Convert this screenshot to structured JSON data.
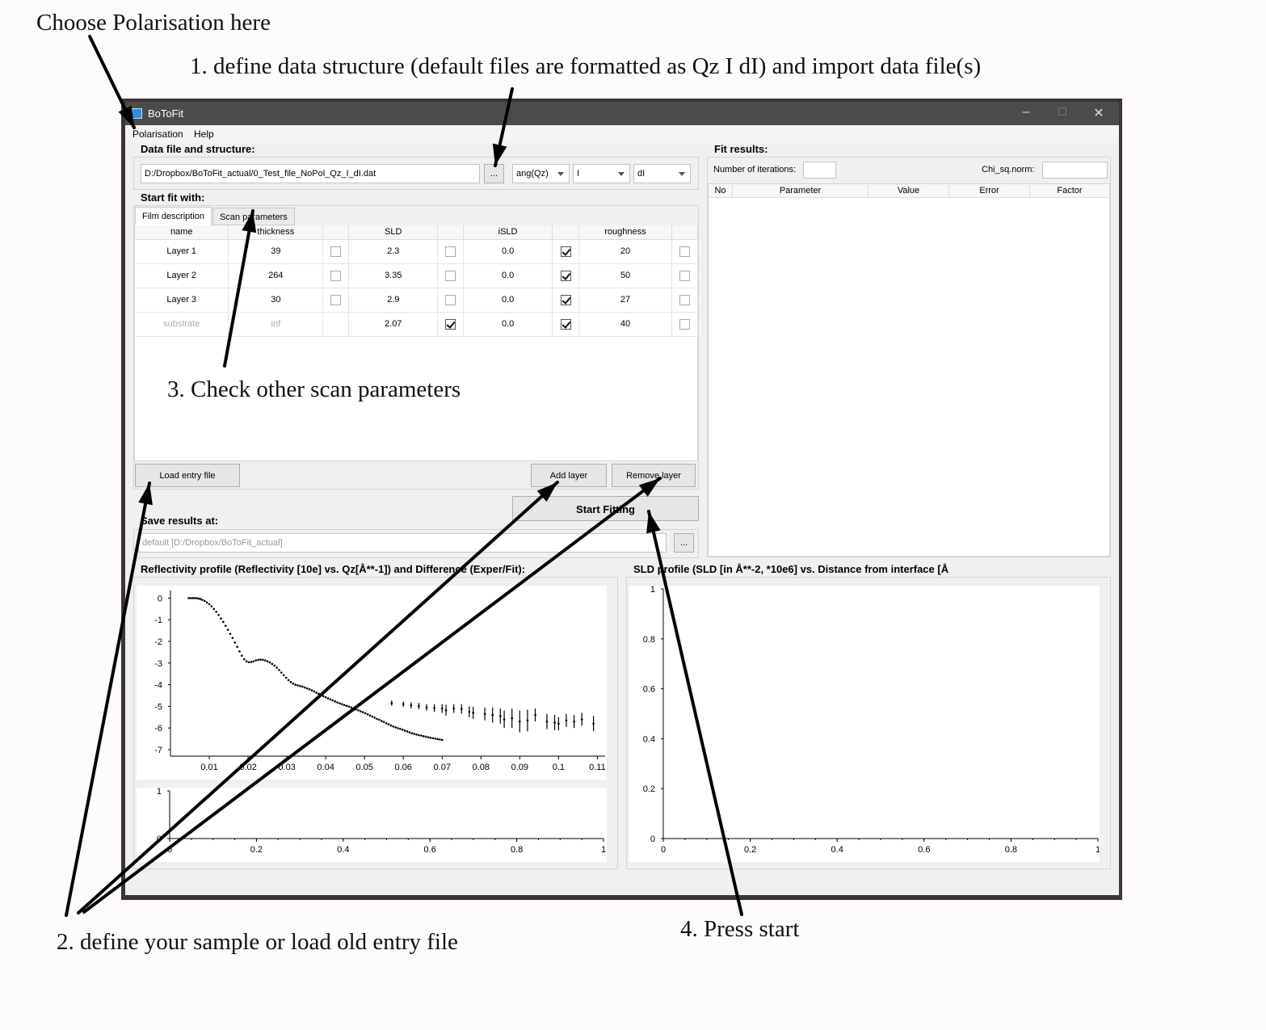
{
  "annotations": {
    "polarisation": "Choose Polarisation here",
    "step1": "1. define data structure (default files are formatted as Qz I dI) and import data file(s)",
    "step2": "2. define your sample or load old entry file",
    "step3": "3. Check other scan parameters",
    "step4": "4. Press start"
  },
  "window": {
    "title": "BoToFit",
    "controls": {
      "minimize": "–",
      "maximize": "□",
      "close": "✕"
    }
  },
  "menu": {
    "polarisation": "Polarisation",
    "help": "Help"
  },
  "data_section": {
    "label": "Data file and structure:",
    "file_path": "D:/Dropbox/BoToFit_actual/0_Test_file_NoPol_Qz_I_dI.dat",
    "browse": "...",
    "col1": "ang(Qz)",
    "col2": "I",
    "col3": "dI"
  },
  "start_fit": {
    "label": "Start fit with:",
    "tabs": [
      "Film description",
      "Scan parameters"
    ],
    "columns": [
      "name",
      "thickness",
      "",
      "SLD",
      "",
      "iSLD",
      "",
      "roughness",
      ""
    ],
    "rows": [
      {
        "name": "Layer 1",
        "thickness": "39",
        "thick_fixed": false,
        "sld": "2.3",
        "sld_fixed": false,
        "isld": "0.0",
        "isld_fixed": true,
        "roughness": "20",
        "rough_fixed": false
      },
      {
        "name": "Layer 2",
        "thickness": "264",
        "thick_fixed": false,
        "sld": "3.35",
        "sld_fixed": false,
        "isld": "0.0",
        "isld_fixed": true,
        "roughness": "50",
        "rough_fixed": false
      },
      {
        "name": "Layer 3",
        "thickness": "30",
        "thick_fixed": false,
        "sld": "2.9",
        "sld_fixed": false,
        "isld": "0.0",
        "isld_fixed": true,
        "roughness": "27",
        "rough_fixed": false
      },
      {
        "name": "substrate",
        "thickness": "inf",
        "thick_fixed": null,
        "sld": "2.07",
        "sld_fixed": true,
        "isld": "0.0",
        "isld_fixed": true,
        "roughness": "40",
        "rough_fixed": false
      }
    ],
    "load_entry": "Load entry file",
    "add_layer": "Add layer",
    "remove_layer": "Remove layer",
    "start": "Start Fitting"
  },
  "save": {
    "label": "Save results at:",
    "placeholder": "default [D:/Dropbox/BoToFit_actual]",
    "browse": "..."
  },
  "fit_results": {
    "label": "Fit results:",
    "iterations_label": "Number of iterations:",
    "chi_label": "Chi_sq.norm:",
    "columns": [
      "No",
      "Parameter",
      "Value",
      "Error",
      "Factor"
    ]
  },
  "plots": {
    "reflectivity_title": "Reflectivity profile (Reflectivity [10e] vs. Qz[Å**-1]) and Difference (Exper/Fit):",
    "sld_title": "SLD profile (SLD [in Å**-2, *10e6] vs. Distance from interface [Å"
  },
  "chart_data": [
    {
      "type": "scatter",
      "name": "reflectivity",
      "xlim": [
        0.0,
        0.112
      ],
      "ylim": [
        -7.3,
        0.35
      ],
      "x_ticks": [
        "0.01",
        "0.02",
        "0.03",
        "0.04",
        "0.05",
        "0.06",
        "0.07",
        "0.08",
        "0.09",
        "0.1",
        "0.11"
      ],
      "y_ticks": [
        "0",
        "-1",
        "-2",
        "-3",
        "-4",
        "-5",
        "-6",
        "-7"
      ],
      "points": [
        [
          0.0047,
          0.0
        ],
        [
          0.0052,
          0.0
        ],
        [
          0.0057,
          0.0
        ],
        [
          0.0062,
          0.0
        ],
        [
          0.0067,
          0.0
        ],
        [
          0.0072,
          -0.02
        ],
        [
          0.0077,
          -0.04
        ],
        [
          0.0082,
          -0.08
        ],
        [
          0.0088,
          -0.13
        ],
        [
          0.0094,
          -0.2
        ],
        [
          0.01,
          -0.28
        ],
        [
          0.0106,
          -0.38
        ],
        [
          0.0112,
          -0.5
        ],
        [
          0.0118,
          -0.63
        ],
        [
          0.0124,
          -0.78
        ],
        [
          0.013,
          -0.94
        ],
        [
          0.0136,
          -1.1
        ],
        [
          0.0142,
          -1.28
        ],
        [
          0.0148,
          -1.46
        ],
        [
          0.0154,
          -1.65
        ],
        [
          0.016,
          -1.84
        ],
        [
          0.0166,
          -2.05
        ],
        [
          0.0172,
          -2.25
        ],
        [
          0.0178,
          -2.46
        ],
        [
          0.0184,
          -2.66
        ],
        [
          0.019,
          -2.82
        ],
        [
          0.0196,
          -2.92
        ],
        [
          0.0202,
          -2.96
        ],
        [
          0.0208,
          -2.95
        ],
        [
          0.0214,
          -2.92
        ],
        [
          0.022,
          -2.88
        ],
        [
          0.0226,
          -2.85
        ],
        [
          0.0232,
          -2.84
        ],
        [
          0.0238,
          -2.85
        ],
        [
          0.0244,
          -2.88
        ],
        [
          0.025,
          -2.92
        ],
        [
          0.0256,
          -2.97
        ],
        [
          0.0262,
          -3.04
        ],
        [
          0.0268,
          -3.12
        ],
        [
          0.0274,
          -3.21
        ],
        [
          0.028,
          -3.32
        ],
        [
          0.0286,
          -3.44
        ],
        [
          0.0292,
          -3.56
        ],
        [
          0.0298,
          -3.68
        ],
        [
          0.0304,
          -3.79
        ],
        [
          0.031,
          -3.88
        ],
        [
          0.0316,
          -3.95
        ],
        [
          0.0322,
          -4.0
        ],
        [
          0.0328,
          -4.03
        ],
        [
          0.0334,
          -4.06
        ],
        [
          0.034,
          -4.09
        ],
        [
          0.0346,
          -4.13
        ],
        [
          0.0352,
          -4.17
        ],
        [
          0.0358,
          -4.21
        ],
        [
          0.0364,
          -4.26
        ],
        [
          0.037,
          -4.31
        ],
        [
          0.0376,
          -4.37
        ],
        [
          0.0382,
          -4.42
        ],
        [
          0.0388,
          -4.48
        ],
        [
          0.0394,
          -4.53
        ],
        [
          0.04,
          -4.58
        ],
        [
          0.0406,
          -4.63
        ],
        [
          0.0412,
          -4.68
        ],
        [
          0.0418,
          -4.72
        ],
        [
          0.0424,
          -4.77
        ],
        [
          0.043,
          -4.82
        ],
        [
          0.0436,
          -4.86
        ],
        [
          0.0442,
          -4.9
        ],
        [
          0.0448,
          -4.94
        ],
        [
          0.0454,
          -4.98
        ],
        [
          0.046,
          -5.01
        ],
        [
          0.0466,
          -5.05
        ],
        [
          0.0472,
          -5.1
        ],
        [
          0.0478,
          -5.14
        ],
        [
          0.0484,
          -5.18
        ],
        [
          0.049,
          -5.23
        ],
        [
          0.0496,
          -5.27
        ],
        [
          0.0502,
          -5.32
        ],
        [
          0.0508,
          -5.37
        ],
        [
          0.0514,
          -5.42
        ],
        [
          0.052,
          -5.47
        ],
        [
          0.0526,
          -5.52
        ],
        [
          0.0532,
          -5.58
        ],
        [
          0.0538,
          -5.62
        ],
        [
          0.0544,
          -5.68
        ],
        [
          0.055,
          -5.72
        ],
        [
          0.0556,
          -5.78
        ],
        [
          0.0562,
          -5.83
        ],
        [
          0.0568,
          -5.88
        ],
        [
          0.0574,
          -5.93
        ],
        [
          0.058,
          -5.97
        ],
        [
          0.0586,
          -6.01
        ],
        [
          0.0592,
          -6.04
        ],
        [
          0.0598,
          -6.08
        ],
        [
          0.0604,
          -6.12
        ],
        [
          0.061,
          -6.16
        ],
        [
          0.0616,
          -6.2
        ],
        [
          0.0622,
          -6.24
        ],
        [
          0.0628,
          -6.27
        ],
        [
          0.0634,
          -6.3
        ],
        [
          0.064,
          -6.33
        ],
        [
          0.0646,
          -6.35
        ],
        [
          0.0652,
          -6.38
        ],
        [
          0.0658,
          -6.4
        ],
        [
          0.0664,
          -6.43
        ],
        [
          0.067,
          -6.45
        ],
        [
          0.0676,
          -6.47
        ],
        [
          0.0682,
          -6.49
        ],
        [
          0.0688,
          -6.51
        ],
        [
          0.0694,
          -6.53
        ],
        [
          0.07,
          -6.55
        ]
      ],
      "error_points": [
        [
          0.057,
          -4.85,
          0.12
        ],
        [
          0.06,
          -4.9,
          0.12
        ],
        [
          0.062,
          -4.95,
          0.14
        ],
        [
          0.064,
          -4.99,
          0.15
        ],
        [
          0.066,
          -5.05,
          0.15
        ],
        [
          0.068,
          -5.08,
          0.18
        ],
        [
          0.07,
          -5.1,
          0.2
        ],
        [
          0.071,
          -5.18,
          0.25
        ],
        [
          0.073,
          -5.1,
          0.2
        ],
        [
          0.075,
          -5.12,
          0.22
        ],
        [
          0.077,
          -5.25,
          0.25
        ],
        [
          0.078,
          -5.3,
          0.28
        ],
        [
          0.081,
          -5.35,
          0.3
        ],
        [
          0.083,
          -5.4,
          0.35
        ],
        [
          0.085,
          -5.45,
          0.35
        ],
        [
          0.086,
          -5.6,
          0.4
        ],
        [
          0.088,
          -5.55,
          0.45
        ],
        [
          0.09,
          -5.7,
          0.5
        ],
        [
          0.092,
          -5.65,
          0.5
        ],
        [
          0.094,
          -5.4,
          0.3
        ],
        [
          0.097,
          -5.7,
          0.35
        ],
        [
          0.099,
          -5.75,
          0.35
        ],
        [
          0.1,
          -5.8,
          0.3
        ],
        [
          0.102,
          -5.65,
          0.3
        ],
        [
          0.104,
          -5.7,
          0.3
        ],
        [
          0.106,
          -5.6,
          0.3
        ],
        [
          0.109,
          -5.8,
          0.35
        ]
      ]
    },
    {
      "type": "line",
      "name": "difference",
      "xlim": [
        0,
        1
      ],
      "ylim": [
        0,
        1
      ],
      "x_ticks": [
        "0",
        "0.2",
        "0.4",
        "0.6",
        "0.8",
        "1"
      ],
      "y_ticks": [
        "0",
        "1"
      ]
    },
    {
      "type": "line",
      "name": "sld",
      "xlim": [
        0,
        1
      ],
      "ylim": [
        0,
        1
      ],
      "x_ticks": [
        "0",
        "0.2",
        "0.4",
        "0.6",
        "0.8",
        "1"
      ],
      "y_ticks": [
        "0",
        "0.2",
        "0.4",
        "0.6",
        "0.8",
        "1"
      ]
    }
  ]
}
